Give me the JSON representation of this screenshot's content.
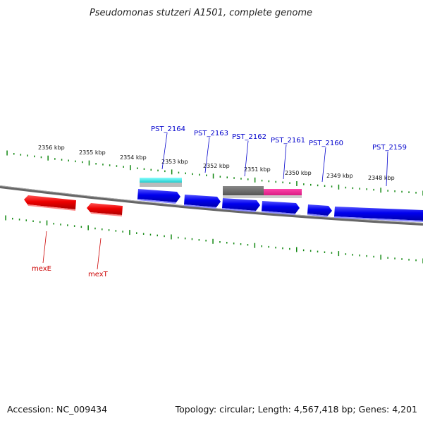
{
  "title": "Pseudomonas stutzeri A1501, complete genome",
  "accession_text": "Accession: NC_009434",
  "summary_text": "Topology: circular; Length: 4,567,418 bp; Genes: 4,201",
  "scale_labels": [
    "2356 kbp",
    "2355 kbp",
    "2354 kbp",
    "2353 kbp",
    "2352 kbp",
    "2351 kbp",
    "2350 kbp",
    "2349 kbp",
    "2348 kbp"
  ],
  "forward_gene_labels": [
    "PST_2164",
    "PST_2163",
    "PST_2162",
    "PST_2161",
    "PST_2160",
    "PST_2159"
  ],
  "reverse_gene_labels": [
    "mexE",
    "mexT"
  ],
  "colors": {
    "forward_gene": "#0000ee",
    "reverse_gene": "#ee0000",
    "tick": "#118811",
    "backbone": "#777777",
    "cyan_feature": "#33e6e6",
    "gray_feature": "#666666",
    "magenta_feature": "#e0208e",
    "light_feature": "#bbbbbb"
  }
}
